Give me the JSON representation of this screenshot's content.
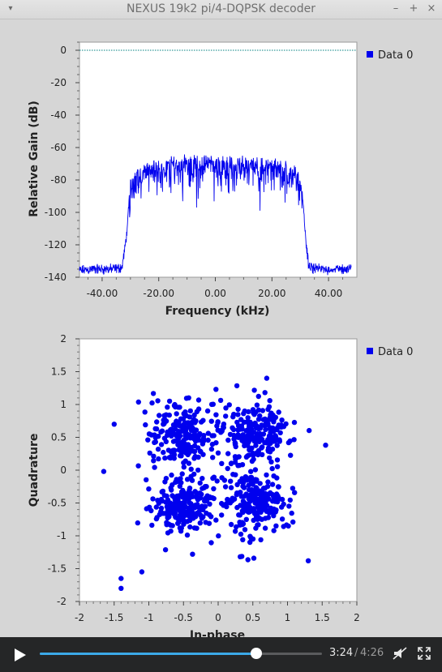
{
  "window": {
    "title": "NEXUS 19k2 pi/4-DQPSK decoder",
    "controls": {
      "minimize": "–",
      "maximize": "+",
      "close": "×",
      "menu": "▾"
    }
  },
  "spectrum_plot": {
    "legend": "Data 0"
  },
  "constellation_plot": {
    "legend": "Data 0"
  },
  "chart_data": [
    {
      "type": "line",
      "title": "",
      "xlabel": "Frequency (kHz)",
      "ylabel": "Relative Gain (dB)",
      "xlim": [
        -48,
        50
      ],
      "ylim": [
        -140,
        5
      ],
      "x_ticks": [
        "-40.00",
        "-20.00",
        "0.00",
        "20.00",
        "40.00"
      ],
      "x_tick_values": [
        -40,
        -20,
        0,
        20,
        40
      ],
      "y_ticks": [
        "0",
        "-20",
        "-40",
        "-60",
        "-80",
        "-100",
        "-120",
        "-140"
      ],
      "y_tick_values": [
        0,
        -20,
        -40,
        -60,
        -80,
        -100,
        -120,
        -140
      ],
      "reference_line": 0,
      "series": [
        {
          "name": "Data 0",
          "color": "#0000ee",
          "x": [
            -48,
            -44,
            -40,
            -36,
            -33,
            -32,
            -31,
            -30,
            -28,
            -25,
            -20,
            -15,
            -10,
            -5,
            0,
            5,
            10,
            15,
            20,
            25,
            28,
            30,
            31,
            32,
            33,
            36,
            40,
            44,
            48
          ],
          "y": [
            -138,
            -137,
            -137,
            -137,
            -136,
            -125,
            -110,
            -80,
            -74,
            -71,
            -69,
            -67,
            -66,
            -66,
            -67,
            -67,
            -67,
            -68,
            -69,
            -70,
            -72,
            -78,
            -95,
            -120,
            -136,
            -137,
            -137,
            -137,
            -137
          ]
        }
      ],
      "legend_position": "top-right",
      "grid": false
    },
    {
      "type": "scatter",
      "title": "",
      "xlabel": "In-phase",
      "ylabel": "Quadrature",
      "xlim": [
        -2,
        2
      ],
      "ylim": [
        -2,
        2
      ],
      "x_ticks": [
        "-2",
        "-1.5",
        "-1",
        "-0.5",
        "0",
        "0.5",
        "1",
        "1.5",
        "2"
      ],
      "x_tick_values": [
        -2,
        -1.5,
        -1,
        -0.5,
        0,
        0.5,
        1,
        1.5,
        2
      ],
      "y_ticks": [
        "2",
        "1.5",
        "1",
        "0.5",
        "0",
        "-0.5",
        "-1",
        "-1.5",
        "-2"
      ],
      "y_tick_values": [
        2,
        1.5,
        1,
        0.5,
        0,
        -0.5,
        -1,
        -1.5,
        -2
      ],
      "series": [
        {
          "name": "Data 0",
          "color": "#0000ee",
          "clusters": [
            {
              "center": [
                -0.5,
                0.55
              ],
              "spread": 0.22,
              "count": 220
            },
            {
              "center": [
                0.55,
                0.55
              ],
              "spread": 0.22,
              "count": 220
            },
            {
              "center": [
                -0.5,
                -0.55
              ],
              "spread": 0.22,
              "count": 220
            },
            {
              "center": [
                0.55,
                -0.5
              ],
              "spread": 0.22,
              "count": 220
            }
          ],
          "outliers": [
            [
              -1.65,
              -0.02
            ],
            [
              -1.4,
              -1.8
            ],
            [
              -1.4,
              -1.65
            ],
            [
              -1.5,
              0.7
            ],
            [
              1.55,
              0.38
            ],
            [
              1.3,
              -1.38
            ],
            [
              0.7,
              1.4
            ],
            [
              -1.1,
              -1.55
            ]
          ]
        }
      ],
      "legend_position": "top-right",
      "grid": false
    }
  ],
  "player": {
    "current_time": "3:24",
    "separator": "/",
    "total_time": "4:26",
    "progress": 0.7669,
    "colors": {
      "bar_bg": "#252627",
      "progress": "#3ca9e8"
    }
  }
}
